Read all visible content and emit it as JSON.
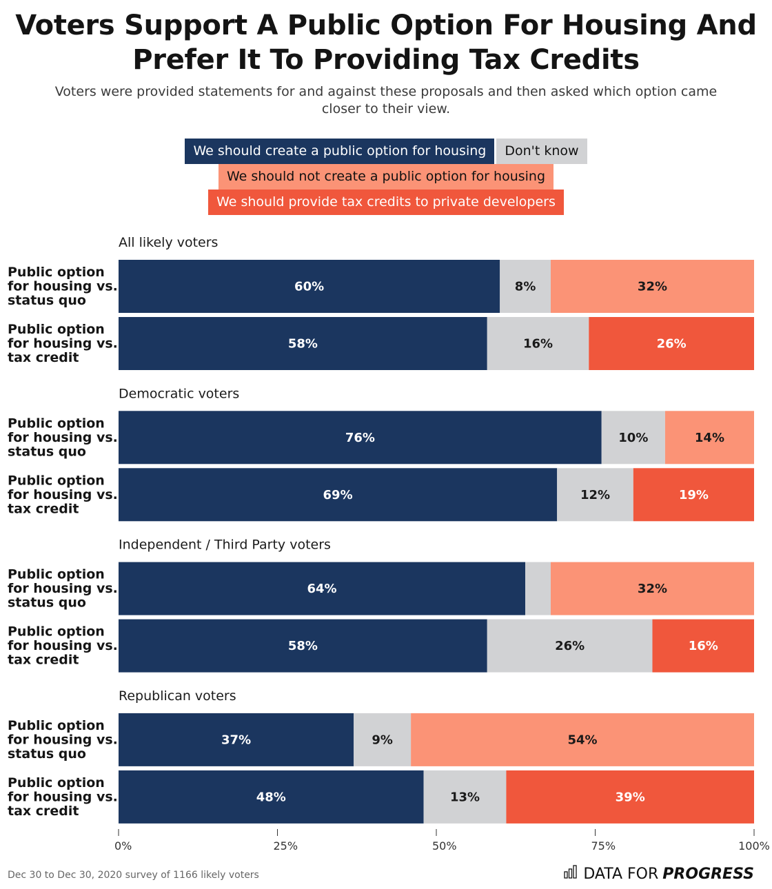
{
  "header": {
    "title_line1": "Voters Support A Public Option For Housing And",
    "title_line2": "Prefer It To Providing Tax Credits",
    "subtitle_line1": "Voters were provided statements for and against these proposals and then asked which option came",
    "subtitle_line2": "closer to their view."
  },
  "legend": {
    "yes": "We should create a public option for housing",
    "dk": "Don't know",
    "no": "We should not create a public option for housing",
    "tax": "We should provide tax credits to private developers"
  },
  "colors": {
    "yes": "#1b365f",
    "dk": "#d1d2d4",
    "no": "#fb9376",
    "tax": "#f0573c"
  },
  "chart_data": {
    "type": "bar",
    "orientation": "horizontal-stacked-100",
    "title": "Voters Support A Public Option For Housing And Prefer It To Providing Tax Credits",
    "subtitle": "Voters were provided statements for and against these proposals and then asked which option came closer to their view.",
    "xlim": [
      0,
      100
    ],
    "x_ticks": [
      "0%",
      "25%",
      "50%",
      "75%",
      "100%"
    ],
    "x_tick_values": [
      0,
      25,
      50,
      75,
      100
    ],
    "legend_position": "top-center",
    "series_names": {
      "yes": "We should create a public option for housing",
      "dk": "Don't know",
      "no": "We should not create a public option for housing",
      "tax": "We should provide tax credits to private developers"
    },
    "groups": [
      {
        "name": "All likely voters",
        "rows": [
          {
            "label": [
              "Public option",
              "for housing vs.",
              "status quo"
            ],
            "segments": [
              {
                "key": "yes",
                "value": 60,
                "label": "60%"
              },
              {
                "key": "dk",
                "value": 8,
                "label": "8%"
              },
              {
                "key": "no",
                "value": 32,
                "label": "32%"
              }
            ]
          },
          {
            "label": [
              "Public option",
              "for housing vs.",
              "tax credit"
            ],
            "segments": [
              {
                "key": "yes",
                "value": 58,
                "label": "58%"
              },
              {
                "key": "dk",
                "value": 16,
                "label": "16%"
              },
              {
                "key": "tax",
                "value": 26,
                "label": "26%"
              }
            ]
          }
        ]
      },
      {
        "name": "Democratic voters",
        "rows": [
          {
            "label": [
              "Public option",
              "for housing vs.",
              "status quo"
            ],
            "segments": [
              {
                "key": "yes",
                "value": 76,
                "label": "76%"
              },
              {
                "key": "dk",
                "value": 10,
                "label": "10%"
              },
              {
                "key": "no",
                "value": 14,
                "label": "14%"
              }
            ]
          },
          {
            "label": [
              "Public option",
              "for housing vs.",
              "tax credit"
            ],
            "segments": [
              {
                "key": "yes",
                "value": 69,
                "label": "69%"
              },
              {
                "key": "dk",
                "value": 12,
                "label": "12%"
              },
              {
                "key": "tax",
                "value": 19,
                "label": "19%"
              }
            ]
          }
        ]
      },
      {
        "name": "Independent / Third Party voters",
        "rows": [
          {
            "label": [
              "Public option",
              "for housing vs.",
              "status quo"
            ],
            "segments": [
              {
                "key": "yes",
                "value": 64,
                "label": "64%"
              },
              {
                "key": "dk",
                "value": 4,
                "label": ""
              },
              {
                "key": "no",
                "value": 32,
                "label": "32%"
              }
            ]
          },
          {
            "label": [
              "Public option",
              "for housing vs.",
              "tax credit"
            ],
            "segments": [
              {
                "key": "yes",
                "value": 58,
                "label": "58%"
              },
              {
                "key": "dk",
                "value": 26,
                "label": "26%"
              },
              {
                "key": "tax",
                "value": 16,
                "label": "16%"
              }
            ]
          }
        ]
      },
      {
        "name": "Republican voters",
        "rows": [
          {
            "label": [
              "Public option",
              "for housing vs.",
              "status quo"
            ],
            "segments": [
              {
                "key": "yes",
                "value": 37,
                "label": "37%"
              },
              {
                "key": "dk",
                "value": 9,
                "label": "9%"
              },
              {
                "key": "no",
                "value": 54,
                "label": "54%"
              }
            ]
          },
          {
            "label": [
              "Public option",
              "for housing vs.",
              "tax credit"
            ],
            "segments": [
              {
                "key": "yes",
                "value": 48,
                "label": "48%"
              },
              {
                "key": "dk",
                "value": 13,
                "label": "13%"
              },
              {
                "key": "tax",
                "value": 39,
                "label": "39%"
              }
            ]
          }
        ]
      }
    ]
  },
  "footer": {
    "note": "Dec 30 to Dec 30, 2020 survey of 1166 likely voters",
    "brand_light": "DATA FOR",
    "brand_bold": "PROGRESS"
  }
}
